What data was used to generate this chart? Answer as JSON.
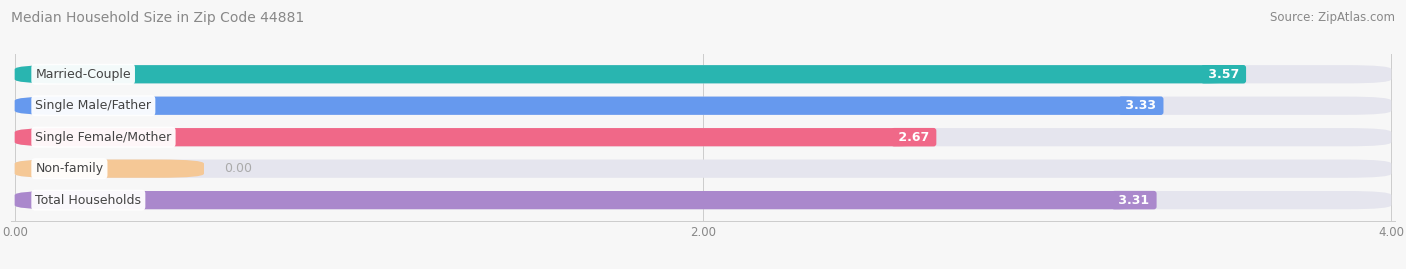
{
  "title": "Median Household Size in Zip Code 44881",
  "source": "Source: ZipAtlas.com",
  "categories": [
    "Married-Couple",
    "Single Male/Father",
    "Single Female/Mother",
    "Non-family",
    "Total Households"
  ],
  "values": [
    3.57,
    3.33,
    2.67,
    0.0,
    3.31
  ],
  "bar_colors": [
    "#29b5b0",
    "#6699ee",
    "#f06888",
    "#f5c896",
    "#aa88cc"
  ],
  "track_color": "#e5e5ee",
  "xlim_max": 4.0,
  "xticks": [
    0.0,
    2.0,
    4.0
  ],
  "xtick_labels": [
    "0.00",
    "2.00",
    "4.00"
  ],
  "figsize": [
    14.06,
    2.69
  ],
  "dpi": 100,
  "title_fontsize": 10,
  "source_fontsize": 8.5,
  "bar_height": 0.58,
  "label_fontsize": 9,
  "value_fontsize": 9,
  "bg_color": "#f7f7f7"
}
